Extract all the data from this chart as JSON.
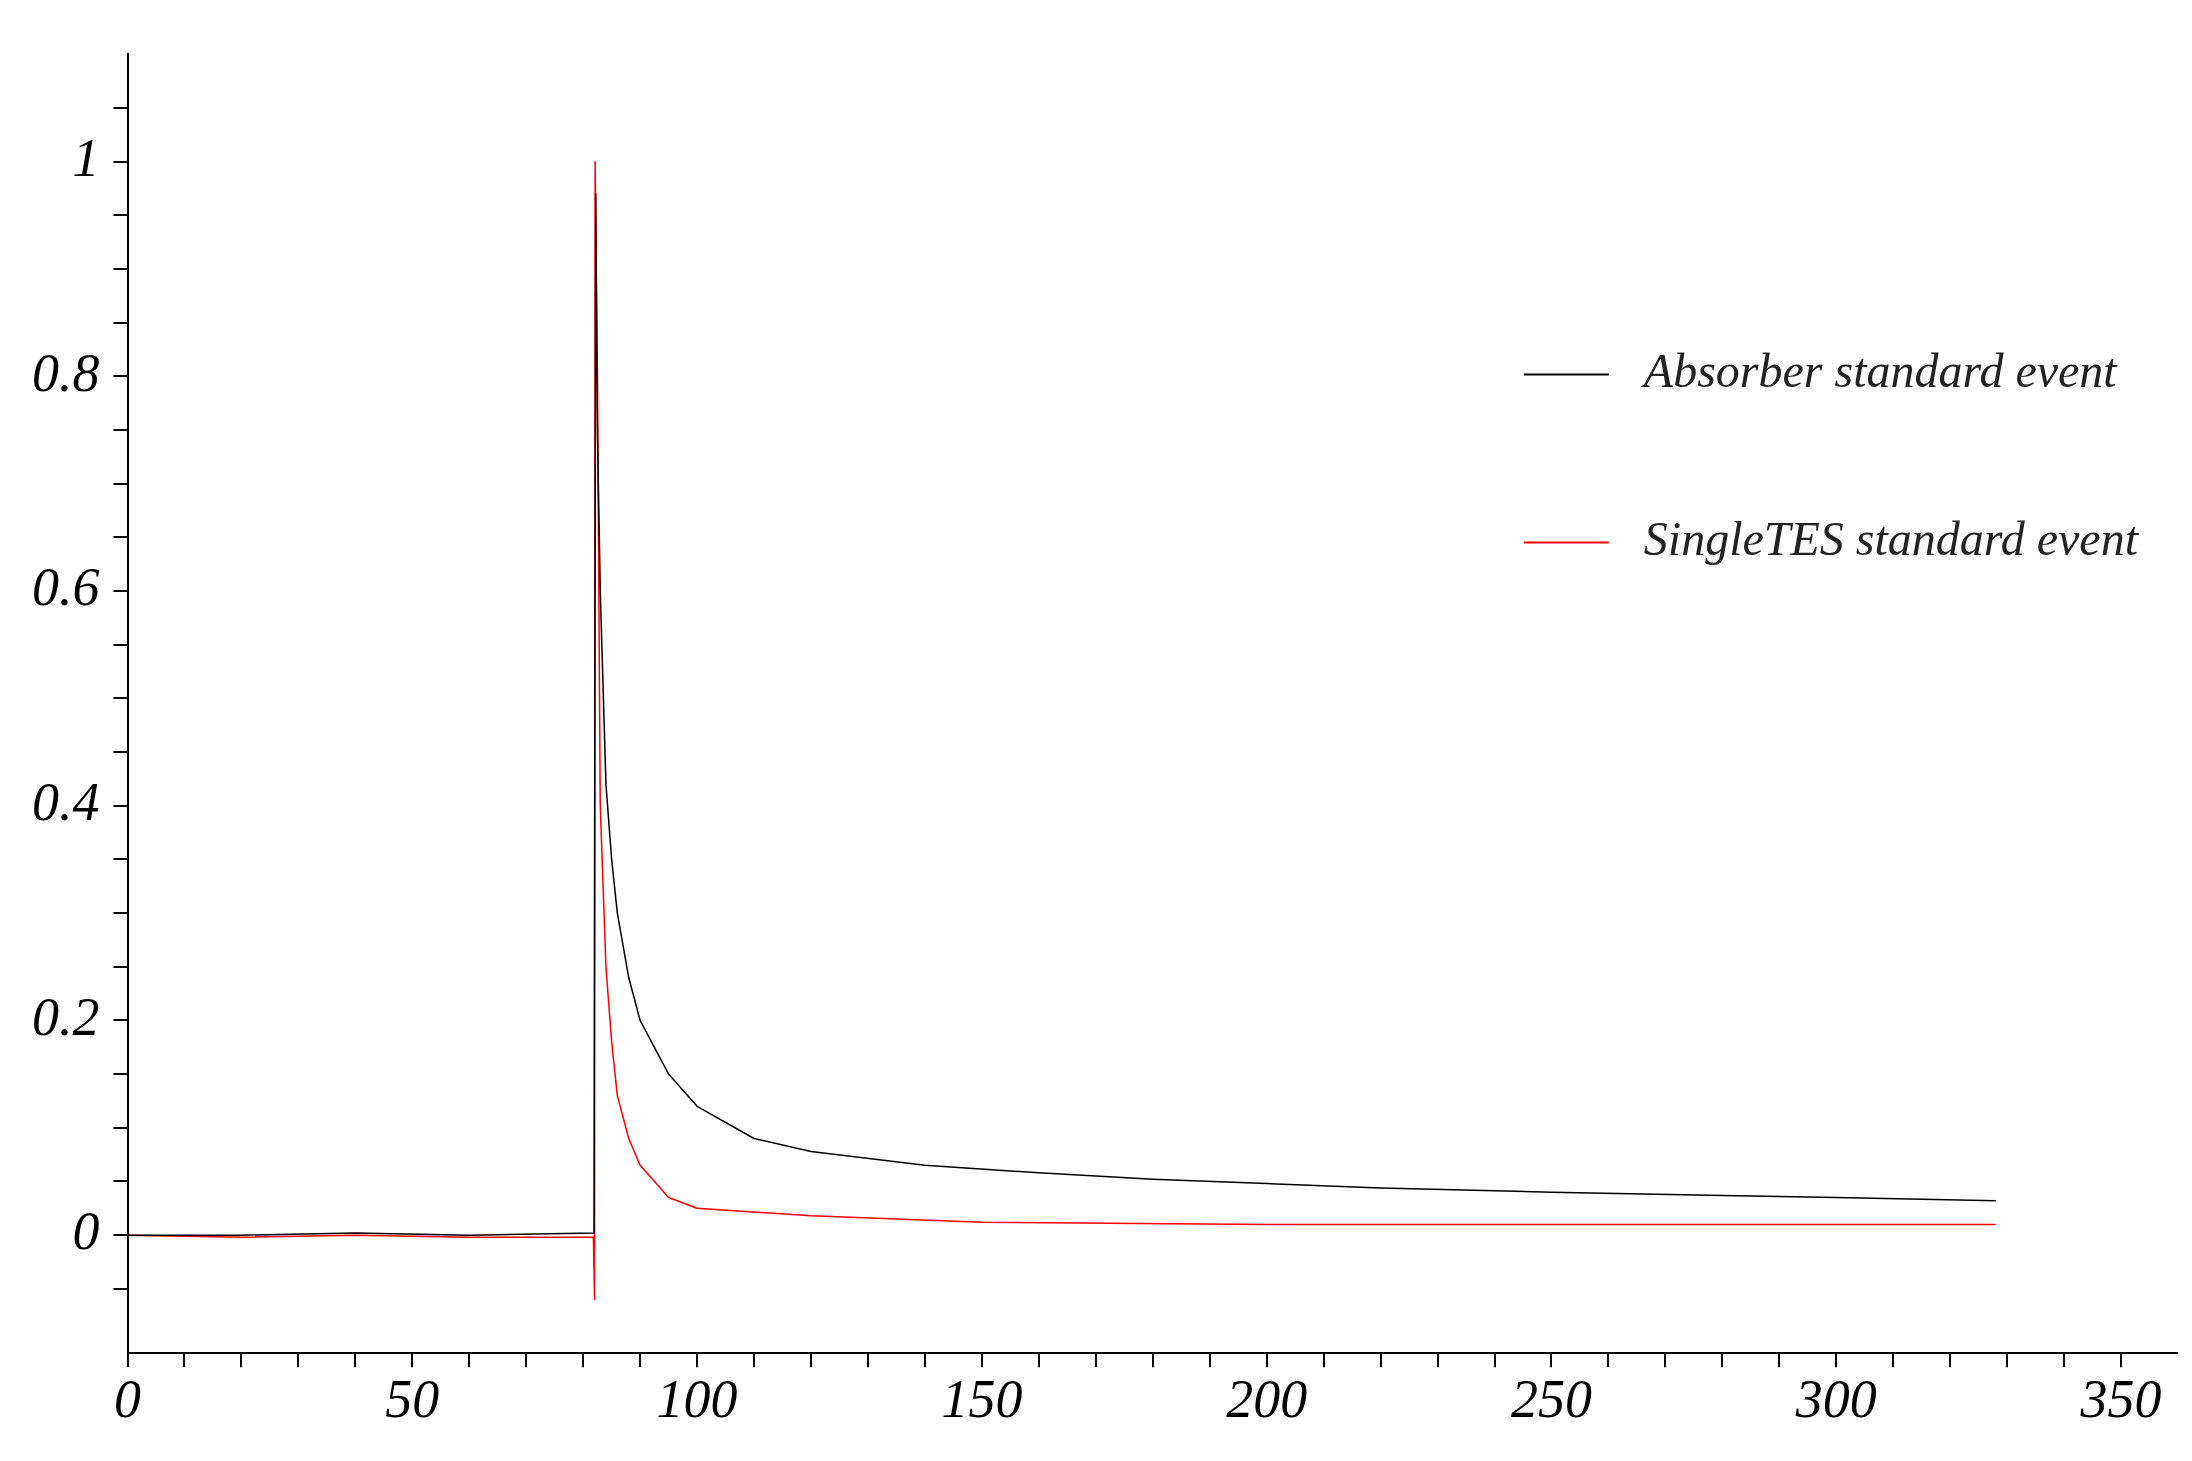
{
  "chart_data": {
    "type": "line",
    "xlim": [
      0,
      360
    ],
    "ylim": [
      -0.11,
      1.1
    ],
    "xticks": [
      0,
      {
        "value": 10,
        "label": null
      },
      {
        "value": 20,
        "label": null
      },
      {
        "value": 30,
        "label": null
      },
      {
        "value": 40,
        "label": null
      },
      50,
      {
        "value": 60,
        "label": null
      },
      {
        "value": 70,
        "label": null
      },
      {
        "value": 80,
        "label": null
      },
      {
        "value": 90,
        "label": null
      },
      100,
      {
        "value": 110,
        "label": null
      },
      {
        "value": 120,
        "label": null
      },
      {
        "value": 130,
        "label": null
      },
      {
        "value": 140,
        "label": null
      },
      150,
      {
        "value": 160,
        "label": null
      },
      {
        "value": 170,
        "label": null
      },
      {
        "value": 180,
        "label": null
      },
      {
        "value": 190,
        "label": null
      },
      200,
      {
        "value": 210,
        "label": null
      },
      {
        "value": 220,
        "label": null
      },
      {
        "value": 230,
        "label": null
      },
      {
        "value": 240,
        "label": null
      },
      250,
      {
        "value": 260,
        "label": null
      },
      {
        "value": 270,
        "label": null
      },
      {
        "value": 280,
        "label": null
      },
      {
        "value": 290,
        "label": null
      },
      300,
      {
        "value": 310,
        "label": null
      },
      {
        "value": 320,
        "label": null
      },
      {
        "value": 330,
        "label": null
      },
      {
        "value": 340,
        "label": null
      },
      350
    ],
    "yticks": [
      {
        "value": -0.05,
        "label": null
      },
      0,
      {
        "value": 0.05,
        "label": null
      },
      {
        "value": 0.1,
        "label": null
      },
      {
        "value": 0.15,
        "label": null
      },
      0.2,
      {
        "value": 0.25,
        "label": null
      },
      {
        "value": 0.3,
        "label": null
      },
      {
        "value": 0.35,
        "label": null
      },
      0.4,
      {
        "value": 0.45,
        "label": null
      },
      {
        "value": 0.5,
        "label": null
      },
      {
        "value": 0.55,
        "label": null
      },
      0.6,
      {
        "value": 0.65,
        "label": null
      },
      {
        "value": 0.7,
        "label": null
      },
      {
        "value": 0.75,
        "label": null
      },
      0.8,
      {
        "value": 0.85,
        "label": null
      },
      {
        "value": 0.9,
        "label": null
      },
      {
        "value": 0.95,
        "label": null
      },
      1,
      {
        "value": 1.05,
        "label": null
      }
    ],
    "grid": false,
    "legend": "top right",
    "marker": "none",
    "line_style": "solid",
    "series": [
      {
        "name": "Absorber standard event",
        "color": "#000000",
        "x": [
          0,
          20,
          40,
          60,
          81.9,
          82.2,
          82.5,
          83,
          84,
          85,
          86,
          88,
          90,
          95,
          100,
          110,
          120,
          140,
          160,
          180,
          200,
          220,
          250,
          280,
          300,
          328
        ],
        "values": [
          0,
          0,
          0.002,
          0,
          0.002,
          0.97,
          0.75,
          0.6,
          0.42,
          0.35,
          0.3,
          0.24,
          0.2,
          0.15,
          0.12,
          0.09,
          0.078,
          0.065,
          0.058,
          0.052,
          0.048,
          0.044,
          0.04,
          0.037,
          0.035,
          0.032
        ]
      },
      {
        "name": "SingleTES standard event",
        "color": "#ff0000",
        "x": [
          0,
          20,
          40,
          60,
          81.8,
          82,
          82.1,
          82.5,
          83,
          84,
          85,
          86,
          88,
          90,
          95,
          100,
          120,
          150,
          200,
          250,
          300,
          328
        ],
        "values": [
          0,
          -0.002,
          0,
          -0.002,
          -0.002,
          -0.06,
          1,
          0.8,
          0.4,
          0.25,
          0.18,
          0.13,
          0.09,
          0.065,
          0.035,
          0.025,
          0.018,
          0.012,
          0.01,
          0.01,
          0.01,
          0.01
        ]
      }
    ]
  }
}
